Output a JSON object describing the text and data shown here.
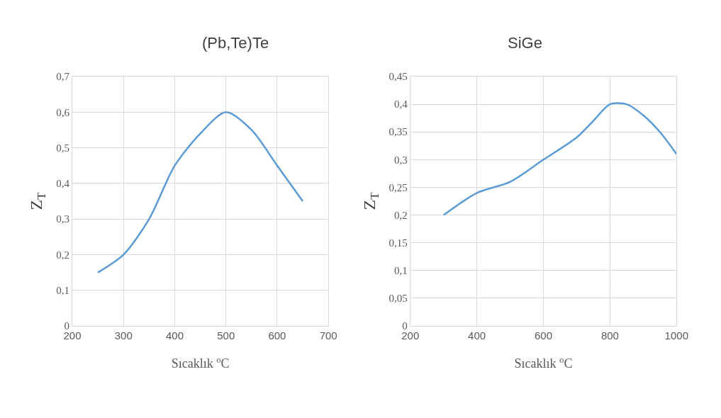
{
  "chart_data": [
    {
      "type": "line",
      "title": "(Pb,Te)Te",
      "xlabel": "Sıcaklık $^{o}$C",
      "ylabel": "Z$_{T}$",
      "x": [
        250,
        300,
        350,
        400,
        450,
        500,
        550,
        600,
        650
      ],
      "series": [
        {
          "color": "#5b9bd5",
          "values": [
            0.15,
            0.2,
            0.3,
            0.45,
            0.54,
            0.6,
            0.55,
            0.45,
            0.35
          ]
        }
      ],
      "xlim": [
        200,
        700
      ],
      "xticks": [
        200,
        300,
        400,
        500,
        600,
        700
      ],
      "ylim": [
        0,
        0.7
      ],
      "yticks": [
        0,
        {
          "value": 0.1,
          "label": "0,1"
        },
        {
          "value": 0.2,
          "label": "0,2"
        },
        {
          "value": 0.3,
          "label": "0,3"
        },
        {
          "value": 0.4,
          "label": "0,4"
        },
        {
          "value": 0.5,
          "label": "0,5"
        },
        {
          "value": 0.6,
          "label": "0,6"
        },
        {
          "value": 0.7,
          "label": "0,7"
        }
      ],
      "grid": true,
      "marker": "none",
      "line_style": "solid"
    },
    {
      "type": "line",
      "title": "SiGe",
      "xlabel": "Sıcaklık $^{o}$C",
      "ylabel": "Z$_{T}$",
      "x": [
        300,
        400,
        500,
        600,
        700,
        750,
        800,
        850,
        900,
        950,
        1000
      ],
      "series": [
        {
          "color": "#5b9bd5",
          "values": [
            0.2,
            0.24,
            0.26,
            0.3,
            0.34,
            0.37,
            0.4,
            0.4,
            0.38,
            0.35,
            0.31
          ]
        }
      ],
      "xlim": [
        200,
        1000
      ],
      "xticks": [
        200,
        400,
        600,
        800,
        1000
      ],
      "ylim": [
        0,
        0.45
      ],
      "yticks": [
        0,
        {
          "value": 0.05,
          "label": "0,05"
        },
        {
          "value": 0.1,
          "label": "0,1"
        },
        {
          "value": 0.15,
          "label": "0,15"
        },
        {
          "value": 0.2,
          "label": "0,2"
        },
        {
          "value": 0.25,
          "label": "0,25"
        },
        {
          "value": 0.3,
          "label": "0,3"
        },
        {
          "value": 0.35,
          "label": "0,35"
        },
        {
          "value": 0.4,
          "label": "0,4"
        },
        {
          "value": 0.45,
          "label": "0,45"
        }
      ],
      "grid": true,
      "marker": "none",
      "line_style": "solid"
    }
  ]
}
